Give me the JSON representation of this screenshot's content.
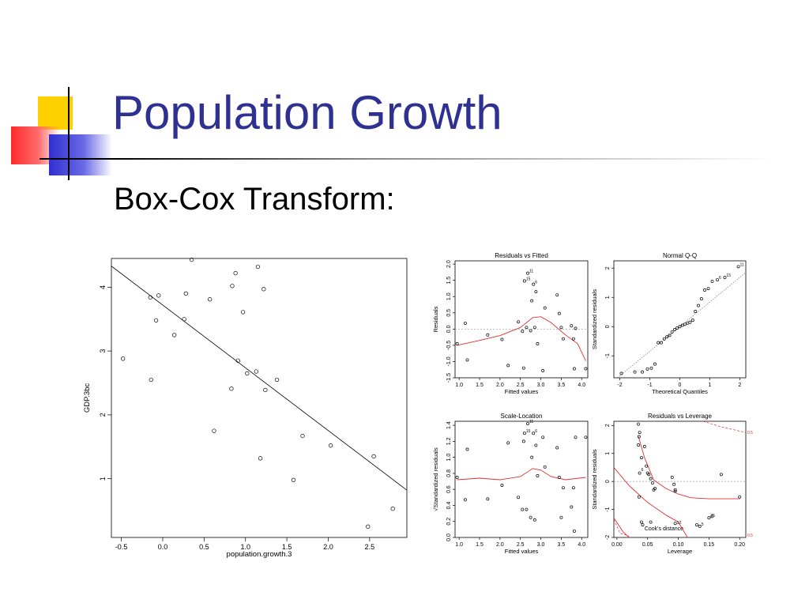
{
  "slide": {
    "title": "Population Growth",
    "subtitle": "Box-Cox Transform:"
  },
  "colors": {
    "title": "#2e3192",
    "fit_line": "#e03030",
    "deco_yellow": "#ffd000",
    "deco_red": "#ff2a2a",
    "deco_blue": "#2f2fd0"
  },
  "chart_data": [
    {
      "id": "main",
      "type": "scatter",
      "title": "",
      "xlabel": "population.growth.3",
      "ylabel": "GDP.3bc",
      "xlim": [
        -0.62,
        2.95
      ],
      "ylim": [
        0.08,
        4.45
      ],
      "xticks": [
        -0.5,
        0.0,
        0.5,
        1.0,
        1.5,
        2.0,
        2.5
      ],
      "xtick_labels": [
        "-0.5",
        "0.0",
        "0.5",
        "1.0",
        "1.5",
        "2.0",
        "2.5"
      ],
      "yticks": [
        1,
        2,
        3,
        4
      ],
      "ytick_labels": [
        "1",
        "2",
        "3",
        "4"
      ],
      "points": [
        [
          -0.48,
          2.88
        ],
        [
          -0.15,
          3.84
        ],
        [
          -0.14,
          2.55
        ],
        [
          -0.05,
          3.87
        ],
        [
          -0.08,
          3.48
        ],
        [
          0.14,
          3.25
        ],
        [
          0.26,
          3.5
        ],
        [
          0.28,
          3.9
        ],
        [
          0.35,
          4.43
        ],
        [
          0.57,
          3.81
        ],
        [
          0.62,
          1.75
        ],
        [
          0.83,
          2.41
        ],
        [
          0.84,
          4.02
        ],
        [
          0.88,
          4.22
        ],
        [
          0.91,
          2.85
        ],
        [
          0.97,
          3.61
        ],
        [
          1.02,
          2.65
        ],
        [
          1.13,
          2.68
        ],
        [
          1.15,
          4.32
        ],
        [
          1.18,
          1.32
        ],
        [
          1.22,
          3.97
        ],
        [
          1.24,
          2.39
        ],
        [
          1.38,
          2.55
        ],
        [
          1.58,
          0.98
        ],
        [
          1.69,
          1.67
        ],
        [
          2.03,
          1.52
        ],
        [
          2.48,
          0.25
        ],
        [
          2.55,
          1.35
        ],
        [
          2.78,
          0.53
        ]
      ],
      "fit_line": [
        [
          -0.62,
          4.33
        ],
        [
          2.95,
          0.82
        ]
      ]
    },
    {
      "id": "rvf",
      "type": "scatter",
      "title": "Residuals vs Fitted",
      "xlabel": "Fitted values",
      "ylabel": "Residuals",
      "xlim": [
        0.9,
        4.15
      ],
      "ylim": [
        -1.5,
        2.1
      ],
      "xticks": [
        1.0,
        1.5,
        2.0,
        2.5,
        3.0,
        3.5,
        4.0
      ],
      "xtick_labels": [
        "1.0",
        "1.5",
        "2.0",
        "2.5",
        "3.0",
        "3.5",
        "4.0"
      ],
      "yticks": [
        -1.5,
        -1.0,
        -0.5,
        0.0,
        0.5,
        1.0,
        1.5,
        2.0
      ],
      "ytick_labels": [
        "-1.5",
        "-1.0",
        "-0.5",
        "0.0",
        "0.5",
        "1.0",
        "1.5",
        "2.0"
      ],
      "points": [
        [
          0.95,
          -0.45
        ],
        [
          1.15,
          0.18
        ],
        [
          1.2,
          -0.95
        ],
        [
          1.7,
          -0.18
        ],
        [
          2.05,
          -0.32
        ],
        [
          2.2,
          -1.12
        ],
        [
          2.45,
          0.22
        ],
        [
          2.55,
          -0.07
        ],
        [
          2.6,
          1.48
        ],
        [
          2.65,
          0.05
        ],
        [
          2.58,
          -1.2
        ],
        [
          2.68,
          1.72
        ],
        [
          2.75,
          -0.05
        ],
        [
          2.78,
          0.87
        ],
        [
          2.82,
          1.38
        ],
        [
          2.85,
          0.05
        ],
        [
          2.88,
          1.15
        ],
        [
          2.92,
          -0.45
        ],
        [
          3.05,
          -1.28
        ],
        [
          3.1,
          0.65
        ],
        [
          3.4,
          1.05
        ],
        [
          3.45,
          0.48
        ],
        [
          3.5,
          0.05
        ],
        [
          3.55,
          -0.3
        ],
        [
          3.75,
          0.1
        ],
        [
          3.8,
          -0.3
        ],
        [
          3.82,
          -1.22
        ],
        [
          3.85,
          0.02
        ],
        [
          4.1,
          -1.22
        ]
      ],
      "labels": [
        {
          "text": "11",
          "x": 2.68,
          "y": 1.72
        },
        {
          "text": "15",
          "x": 2.6,
          "y": 1.48
        },
        {
          "text": "6",
          "x": 2.82,
          "y": 1.38
        }
      ],
      "reference_line": {
        "y": 0.0
      },
      "smooth": [
        [
          0.95,
          -0.5
        ],
        [
          1.5,
          -0.35
        ],
        [
          2.0,
          -0.2
        ],
        [
          2.5,
          0.05
        ],
        [
          2.8,
          0.35
        ],
        [
          3.0,
          0.38
        ],
        [
          3.25,
          0.2
        ],
        [
          3.6,
          -0.18
        ],
        [
          3.9,
          -0.45
        ],
        [
          4.1,
          -0.98
        ]
      ]
    },
    {
      "id": "qq",
      "type": "scatter",
      "title": "Normal Q-Q",
      "xlabel": "Theoretical Quantiles",
      "ylabel": "Standardized residuals",
      "xlim": [
        -2.2,
        2.2
      ],
      "ylim": [
        -1.75,
        2.25
      ],
      "xticks": [
        -2,
        -1,
        0,
        1,
        2
      ],
      "xtick_labels": [
        "-2",
        "-1",
        "0",
        "1",
        "2"
      ],
      "yticks": [
        -1,
        0,
        1,
        2
      ],
      "ytick_labels": [
        "-1",
        "0",
        "1",
        "2"
      ],
      "points": [
        [
          -1.95,
          -1.6
        ],
        [
          -1.5,
          -1.55
        ],
        [
          -1.25,
          -1.55
        ],
        [
          -1.08,
          -1.45
        ],
        [
          -0.95,
          -1.42
        ],
        [
          -0.83,
          -1.28
        ],
        [
          -0.72,
          -0.55
        ],
        [
          -0.62,
          -0.55
        ],
        [
          -0.52,
          -0.42
        ],
        [
          -0.43,
          -0.35
        ],
        [
          -0.34,
          -0.3
        ],
        [
          -0.26,
          -0.18
        ],
        [
          -0.17,
          -0.1
        ],
        [
          -0.09,
          -0.05
        ],
        [
          0.0,
          0.0
        ],
        [
          0.09,
          0.05
        ],
        [
          0.17,
          0.08
        ],
        [
          0.26,
          0.12
        ],
        [
          0.34,
          0.15
        ],
        [
          0.43,
          0.22
        ],
        [
          0.52,
          0.52
        ],
        [
          0.62,
          0.72
        ],
        [
          0.72,
          0.95
        ],
        [
          0.83,
          1.25
        ],
        [
          0.95,
          1.3
        ],
        [
          1.08,
          1.55
        ],
        [
          1.25,
          1.6
        ],
        [
          1.5,
          1.68
        ],
        [
          1.95,
          2.05
        ]
      ],
      "labels": [
        {
          "text": "11",
          "x": 1.95,
          "y": 2.05
        },
        {
          "text": "15",
          "x": 1.5,
          "y": 1.68
        },
        {
          "text": "6",
          "x": 1.25,
          "y": 1.6
        }
      ],
      "reference_line": {
        "points": [
          [
            -2.2,
            -1.85
          ],
          [
            2.2,
            1.85
          ]
        ]
      }
    },
    {
      "id": "sl",
      "type": "scatter",
      "title": "Scale-Location",
      "xlabel": "Fitted values",
      "ylabel": "√Standardized residuals",
      "xlim": [
        0.9,
        4.15
      ],
      "ylim": [
        0.0,
        1.45
      ],
      "xticks": [
        1.0,
        1.5,
        2.0,
        2.5,
        3.0,
        3.5,
        4.0
      ],
      "xtick_labels": [
        "1.0",
        "1.5",
        "2.0",
        "2.5",
        "3.0",
        "3.5",
        "4.0"
      ],
      "yticks": [
        0.0,
        0.2,
        0.4,
        0.6,
        0.8,
        1.0,
        1.2,
        1.4
      ],
      "ytick_labels": [
        "0.0",
        "0.2",
        "0.4",
        "0.6",
        "0.8",
        "1.0",
        "1.2",
        "1.4"
      ],
      "points": [
        [
          0.95,
          0.75
        ],
        [
          1.15,
          0.47
        ],
        [
          1.2,
          1.1
        ],
        [
          1.7,
          0.48
        ],
        [
          2.05,
          0.65
        ],
        [
          2.2,
          1.18
        ],
        [
          2.45,
          0.5
        ],
        [
          2.55,
          0.35
        ],
        [
          2.6,
          1.3
        ],
        [
          2.65,
          0.35
        ],
        [
          2.58,
          1.2
        ],
        [
          2.68,
          1.42
        ],
        [
          2.75,
          0.25
        ],
        [
          2.78,
          1.0
        ],
        [
          2.82,
          1.3
        ],
        [
          2.85,
          0.22
        ],
        [
          2.88,
          1.15
        ],
        [
          2.92,
          0.77
        ],
        [
          3.05,
          1.25
        ],
        [
          3.1,
          0.88
        ],
        [
          3.4,
          1.12
        ],
        [
          3.45,
          0.75
        ],
        [
          3.5,
          0.25
        ],
        [
          3.55,
          0.62
        ],
        [
          3.75,
          0.38
        ],
        [
          3.8,
          0.62
        ],
        [
          3.82,
          0.08
        ],
        [
          3.85,
          1.25
        ],
        [
          4.1,
          1.25
        ]
      ],
      "labels": [
        {
          "text": "11",
          "x": 2.68,
          "y": 1.42
        },
        {
          "text": "15",
          "x": 2.6,
          "y": 1.3
        },
        {
          "text": "6",
          "x": 2.82,
          "y": 1.3
        }
      ],
      "smooth": [
        [
          0.95,
          0.72
        ],
        [
          1.5,
          0.74
        ],
        [
          2.0,
          0.72
        ],
        [
          2.5,
          0.76
        ],
        [
          2.8,
          0.86
        ],
        [
          3.0,
          0.84
        ],
        [
          3.25,
          0.76
        ],
        [
          3.6,
          0.72
        ],
        [
          4.1,
          0.75
        ]
      ]
    },
    {
      "id": "rvl",
      "type": "scatter",
      "title": "Residuals vs Leverage",
      "xlabel": "Leverage",
      "ylabel": "Standardized residuals",
      "xlim": [
        -0.005,
        0.21
      ],
      "ylim": [
        -2.0,
        2.15
      ],
      "xticks": [
        0.0,
        0.05,
        0.1,
        0.15,
        0.2
      ],
      "xtick_labels": [
        "0.00",
        "0.05",
        "0.10",
        "0.15",
        "0.20"
      ],
      "yticks": [
        -2,
        -1,
        0,
        1,
        2
      ],
      "ytick_labels": [
        "-2",
        "-1",
        "0",
        "1",
        "2"
      ],
      "points": [
        [
          0.035,
          2.05
        ],
        [
          0.037,
          1.75
        ],
        [
          0.036,
          1.6
        ],
        [
          0.035,
          1.3
        ],
        [
          0.04,
          0.85
        ],
        [
          0.045,
          1.25
        ],
        [
          0.048,
          0.55
        ],
        [
          0.05,
          0.3
        ],
        [
          0.052,
          0.25
        ],
        [
          0.055,
          0.1
        ],
        [
          0.058,
          -0.05
        ],
        [
          0.06,
          -0.3
        ],
        [
          0.062,
          -0.25
        ],
        [
          0.037,
          0.3
        ],
        [
          0.036,
          -0.55
        ],
        [
          0.04,
          -1.45
        ],
        [
          0.042,
          -1.55
        ],
        [
          0.055,
          -1.45
        ],
        [
          0.09,
          0.15
        ],
        [
          0.093,
          -0.1
        ],
        [
          0.095,
          -0.3
        ],
        [
          0.095,
          -1.5
        ],
        [
          0.13,
          -1.55
        ],
        [
          0.135,
          -1.6
        ],
        [
          0.15,
          -1.3
        ],
        [
          0.155,
          -1.25
        ],
        [
          0.17,
          0.25
        ],
        [
          0.2,
          -0.55
        ],
        [
          0.095,
          -0.35
        ]
      ],
      "labels": [
        {
          "text": "6",
          "x": 0.037,
          "y": 0.35
        },
        {
          "text": "12",
          "x": 0.095,
          "y": -1.55
        },
        {
          "text": "5",
          "x": 0.135,
          "y": -1.6
        },
        {
          "text": "25",
          "x": 0.15,
          "y": -1.3
        }
      ],
      "reference_line": {
        "y": 0.0
      },
      "smooth": [
        [
          0.035,
          1.6
        ],
        [
          0.045,
          0.85
        ],
        [
          0.06,
          0.05
        ],
        [
          0.08,
          -0.25
        ],
        [
          0.1,
          -0.45
        ],
        [
          0.12,
          -0.58
        ],
        [
          0.15,
          -0.62
        ],
        [
          0.2,
          -0.62
        ]
      ],
      "smooth_b": [
        [
          -0.005,
          0.5
        ],
        [
          0.02,
          -0.15
        ],
        [
          0.05,
          -0.75
        ],
        [
          0.08,
          -1.2
        ],
        [
          0.1,
          -1.45
        ],
        [
          0.115,
          -2.0
        ]
      ],
      "smooth_c": [
        [
          -0.005,
          -1.3
        ],
        [
          0.01,
          -1.8
        ],
        [
          0.02,
          -2.0
        ]
      ],
      "cooks_upper": [
        [
          0.14,
          2.15
        ],
        [
          0.17,
          1.95
        ],
        [
          0.21,
          1.75
        ]
      ],
      "cooks_lower": [
        [
          -0.005,
          -1.35
        ],
        [
          0.005,
          -1.85
        ],
        [
          0.02,
          -1.95
        ]
      ],
      "cooks_label": "Cook's distance",
      "contour_labels": [
        "0.5",
        "0.5"
      ]
    }
  ]
}
